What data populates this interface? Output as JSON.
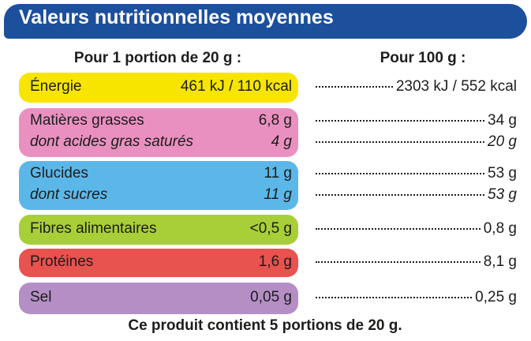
{
  "header": {
    "title": "Valeurs nutritionnelles moyennes"
  },
  "columns": {
    "per_portion": "Pour 1 portion de 20 g :",
    "per_100g": "Pour 100 g :"
  },
  "rows": [
    {
      "label": "Énergie",
      "per_portion": "461 kJ / 110 kcal",
      "per_100g": "2303 kJ / 552 kcal"
    },
    {
      "label": "Matières grasses",
      "per_portion": "6,8 g",
      "per_100g": "34 g",
      "sub": {
        "label": "dont acides gras saturés",
        "per_portion": "4 g",
        "per_100g": "20 g"
      }
    },
    {
      "label": "Glucides",
      "per_portion": "11 g",
      "per_100g": "53 g",
      "sub": {
        "label": "dont sucres",
        "per_portion": "11 g",
        "per_100g": "53 g"
      }
    },
    {
      "label": "Fibres alimentaires",
      "per_portion": "<0,5 g",
      "per_100g": "0,8 g"
    },
    {
      "label": "Protéines",
      "per_portion": "1,6 g",
      "per_100g": "8,1 g"
    },
    {
      "label": "Sel",
      "per_portion": "0,05 g",
      "per_100g": "0,25 g"
    }
  ],
  "footer": "Ce produit contient 5 portions de 20 g."
}
